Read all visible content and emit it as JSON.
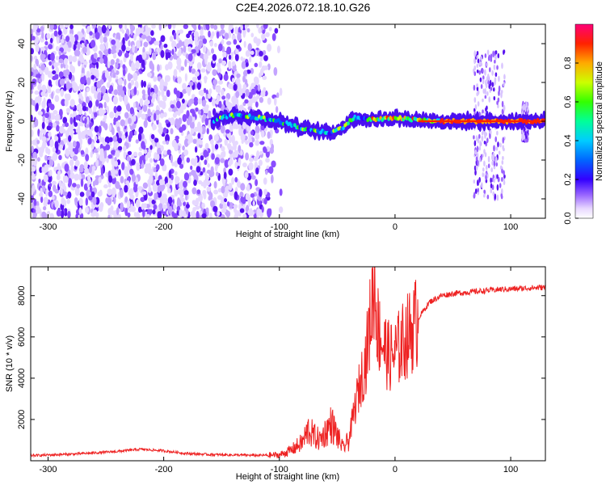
{
  "title": "C2E4.2026.072.18.10.G26",
  "chart_data": [
    {
      "type": "heatmap",
      "name": "spectrogram",
      "xlabel": "Height of straight line (km)",
      "ylabel": "Frequency (Hz)",
      "xlim": [
        -315,
        130
      ],
      "ylim": [
        -50,
        50
      ],
      "x_ticks": [
        -300,
        -200,
        -100,
        0,
        100
      ],
      "y_ticks": [
        -40,
        -20,
        0,
        20,
        40
      ],
      "colorbar": {
        "label": "Normalized spectral amplitude",
        "range": [
          0,
          1
        ],
        "ticks": [
          0.0,
          0.2,
          0.4,
          0.6,
          0.8
        ]
      },
      "signal_track": [
        {
          "x": -155,
          "y": 1
        },
        {
          "x": -140,
          "y": 3
        },
        {
          "x": -120,
          "y": 2
        },
        {
          "x": -100,
          "y": 0
        },
        {
          "x": -85,
          "y": -3
        },
        {
          "x": -70,
          "y": -5
        },
        {
          "x": -55,
          "y": -6
        },
        {
          "x": -45,
          "y": -3
        },
        {
          "x": -35,
          "y": 2
        },
        {
          "x": -25,
          "y": 1
        },
        {
          "x": -10,
          "y": 1
        },
        {
          "x": 0,
          "y": 2
        },
        {
          "x": 10,
          "y": 1
        },
        {
          "x": 40,
          "y": 0
        },
        {
          "x": 70,
          "y": 0
        },
        {
          "x": 130,
          "y": 0
        }
      ]
    },
    {
      "type": "line",
      "name": "snr",
      "xlabel": "Height of straight line (km)",
      "ylabel": "SNR (10 * v/v)",
      "xlim": [
        -315,
        130
      ],
      "ylim": [
        0,
        9400
      ],
      "x_ticks": [
        -300,
        -200,
        -100,
        0,
        100
      ],
      "y_ticks": [
        2000,
        4000,
        6000,
        8000
      ],
      "color": "#ee2222",
      "series": [
        {
          "x": [
            -315,
            -300,
            -280,
            -260,
            -240,
            -220,
            -200,
            -180,
            -160,
            -140,
            -120,
            -100,
            -90,
            -80,
            -75,
            -70,
            -65,
            -60,
            -55,
            -50,
            -45,
            -40,
            -35,
            -30,
            -25,
            -20,
            -18,
            -15,
            -10,
            -5,
            0,
            5,
            10,
            15,
            20,
            25,
            30,
            40,
            50,
            60,
            70,
            80,
            90,
            100,
            110,
            120,
            130
          ],
          "values": [
            250,
            280,
            320,
            380,
            450,
            560,
            480,
            350,
            300,
            280,
            260,
            280,
            500,
            900,
            1500,
            1200,
            1000,
            1400,
            1800,
            1200,
            600,
            1000,
            2500,
            3800,
            5000,
            7500,
            8900,
            6500,
            5600,
            5000,
            5200,
            5600,
            6000,
            6400,
            6900,
            7300,
            7700,
            8000,
            8100,
            8150,
            8200,
            8250,
            8300,
            8320,
            8350,
            8380,
            8400
          ]
        }
      ]
    }
  ]
}
